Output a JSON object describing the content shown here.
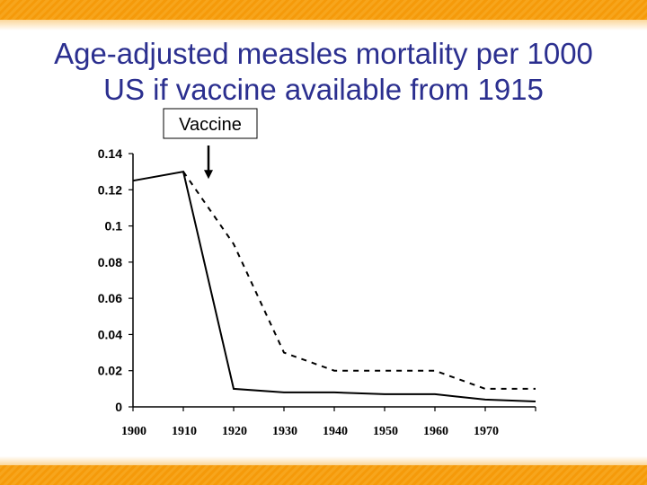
{
  "slide": {
    "title_line1": "Age-adjusted measles mortality per 1000",
    "title_line2": "US if vaccine available from 1915",
    "accent_color": "#f7a51c",
    "title_color": "#2b2f8f"
  },
  "chart_data": {
    "type": "line",
    "title": "Age-adjusted measles mortality per 1000 US if vaccine available from 1915",
    "xlabel": "",
    "ylabel": "",
    "xlim": [
      1900,
      1980
    ],
    "ylim": [
      0,
      0.14
    ],
    "x_ticks": [
      "1900",
      "1910",
      "1920",
      "1930",
      "1940",
      "1950",
      "1960",
      "1970"
    ],
    "y_ticks": [
      "0",
      "0.02",
      "0.04",
      "0.06",
      "0.08",
      "0.1",
      "0.12",
      "0.14"
    ],
    "grid": false,
    "legend": "none",
    "series": [
      {
        "style": "solid",
        "x": [
          1900,
          1910,
          1920,
          1930,
          1940,
          1950,
          1960,
          1970,
          1980
        ],
        "y": [
          0.125,
          0.13,
          0.01,
          0.008,
          0.008,
          0.007,
          0.007,
          0.004,
          0.003
        ]
      },
      {
        "style": "dashed",
        "x": [
          1910,
          1920,
          1930,
          1940,
          1950,
          1960,
          1970,
          1980
        ],
        "y": [
          0.13,
          0.09,
          0.03,
          0.02,
          0.02,
          0.02,
          0.01,
          0.01
        ]
      }
    ],
    "annotations": [
      {
        "text": "Vaccine",
        "x": 1915,
        "y": 0.125
      }
    ]
  }
}
